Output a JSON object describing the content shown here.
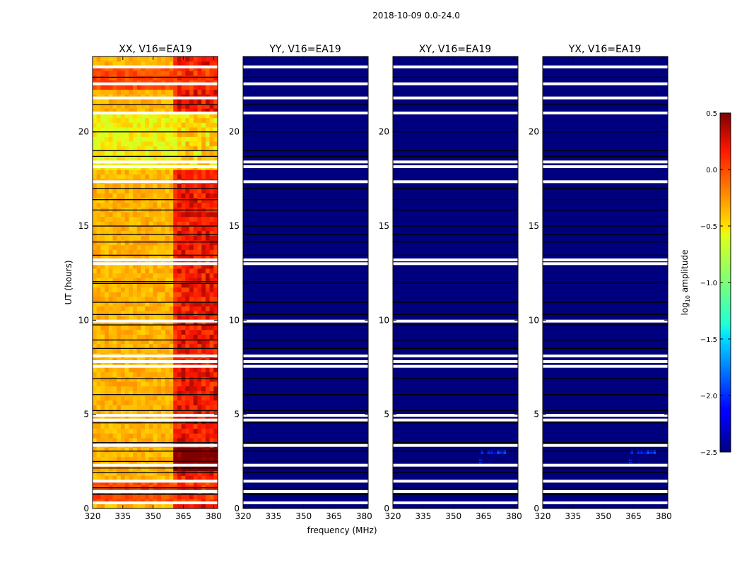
{
  "figure": {
    "suptitle": "2018-10-09 0.0-24.0",
    "xlabel": "frequency (MHz)",
    "ylabel": "UT (hours)"
  },
  "colors": {
    "nan_band": "#ffffff",
    "flag_line": "#000000"
  },
  "chart_data": [
    {
      "type": "heatmap",
      "title": "XX, V16=EA19",
      "xlim": [
        320,
        382
      ],
      "ylim": [
        0,
        24
      ],
      "xticks": [
        320,
        335,
        350,
        365,
        380
      ],
      "yticks": [
        0,
        5,
        10,
        15,
        20
      ],
      "base_level_log10": -0.35,
      "features": [
        {
          "x_range": [
            361,
            382
          ],
          "level_log10": 0.1,
          "note": "high-amplitude RFI band"
        },
        {
          "y_range": [
            0.3,
            1.4
          ],
          "level_log10": 0.0,
          "note": "elevated block"
        },
        {
          "y_range": [
            2.1,
            3.3
          ],
          "x_range": [
            361,
            382
          ],
          "level_log10": 0.5,
          "note": "saturated block"
        },
        {
          "y_range": [
            22.3,
            23.5
          ],
          "level_log10": 0.0,
          "note": "elevated block"
        },
        {
          "y_range": [
            18.0,
            21.0
          ],
          "level_log10": -0.55,
          "note": "lower amplitude region"
        }
      ]
    },
    {
      "type": "heatmap",
      "title": "YY, V16=EA19",
      "xlim": [
        320,
        382
      ],
      "ylim": [
        0,
        24
      ],
      "xticks": [
        320,
        335,
        350,
        365,
        380
      ],
      "yticks": [
        0,
        5,
        10,
        15,
        20
      ],
      "base_level_log10": -2.5,
      "features": []
    },
    {
      "type": "heatmap",
      "title": "XY, V16=EA19",
      "xlim": [
        320,
        382
      ],
      "ylim": [
        0,
        24
      ],
      "xticks": [
        320,
        335,
        350,
        365,
        380
      ],
      "yticks": [
        0,
        5,
        10,
        15,
        20
      ],
      "base_level_log10": -2.5,
      "features": [
        {
          "y_range": [
            2.9,
            3.1
          ],
          "x_range": [
            362,
            378
          ],
          "level_log10": -2.0,
          "note": "faint signal"
        },
        {
          "y_range": [
            2.4,
            2.6
          ],
          "x_range": [
            362,
            370
          ],
          "level_log10": -2.0,
          "note": "faint signal"
        }
      ]
    },
    {
      "type": "heatmap",
      "title": "YX, V16=EA19",
      "xlim": [
        320,
        382
      ],
      "ylim": [
        0,
        24
      ],
      "xticks": [
        320,
        335,
        350,
        365,
        380
      ],
      "yticks": [
        0,
        5,
        10,
        15,
        20
      ],
      "base_level_log10": -2.5,
      "features": [
        {
          "y_range": [
            2.9,
            3.1
          ],
          "x_range": [
            362,
            378
          ],
          "level_log10": -2.0,
          "note": "faint signal"
        },
        {
          "y_range": [
            2.4,
            2.6
          ],
          "x_range": [
            362,
            370
          ],
          "level_log10": -2.0,
          "note": "faint signal"
        }
      ]
    },
    {
      "type": "colorbar",
      "label": "log10 amplitude",
      "label_base": "log",
      "label_sub": "10",
      "label_rest": " amplitude",
      "range": [
        -2.5,
        0.5
      ],
      "ticks": [
        -2.5,
        -2.0,
        -1.5,
        -1.0,
        -0.5,
        0.0,
        0.5
      ],
      "tick_labels": [
        "−2.5",
        "−2.0",
        "−1.5",
        "−1.0",
        "−0.5",
        "0.0",
        "0.5"
      ],
      "colormap": "jet"
    }
  ],
  "gaps": {
    "white_bands_hours": [
      0.3,
      0.9,
      1.45,
      2.3,
      3.35,
      4.7,
      4.95,
      7.55,
      7.8,
      8.1,
      9.95,
      13.0,
      13.2,
      17.35,
      18.15,
      18.4,
      21.0,
      21.8,
      22.55,
      23.45
    ],
    "black_lines_hours": [
      0.75,
      1.1,
      1.9,
      2.15,
      2.5,
      3.05,
      3.5,
      4.55,
      5.2,
      6.05,
      6.9,
      8.5,
      8.95,
      9.75,
      10.3,
      10.95,
      11.95,
      12.05,
      13.45,
      14.15,
      14.55,
      15.0,
      15.85,
      16.4,
      17.0,
      18.7,
      19.0,
      20.0,
      21.45,
      22.9
    ]
  }
}
